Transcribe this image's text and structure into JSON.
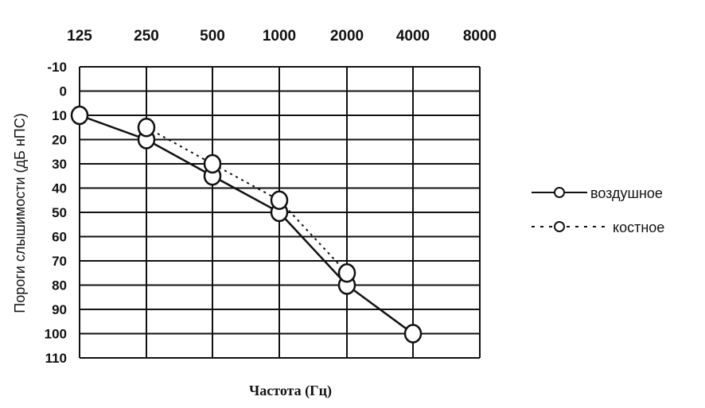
{
  "chart_data": {
    "type": "line",
    "title": "",
    "xlabel": "Частота (Гц)",
    "ylabel": "Пороги слышимости (дБ нПС)",
    "x_ticks": [
      "125",
      "250",
      "500",
      "1000",
      "2000",
      "4000",
      "8000"
    ],
    "y_ticks": [
      "-10",
      "0",
      "10",
      "20",
      "30",
      "40",
      "50",
      "60",
      "70",
      "80",
      "90",
      "100",
      "110"
    ],
    "ylim": [
      -10,
      110
    ],
    "y_inverted": true,
    "grid": true,
    "legend_position": "right",
    "series": [
      {
        "name": "воздушное",
        "style": "solid",
        "marker": "circle",
        "x": [
          "125",
          "250",
          "500",
          "1000",
          "2000",
          "4000"
        ],
        "values": [
          10,
          20,
          35,
          50,
          80,
          100
        ]
      },
      {
        "name": "костное",
        "style": "dotted",
        "marker": "circle",
        "x": [
          "250",
          "500",
          "1000",
          "2000"
        ],
        "values": [
          15,
          30,
          45,
          75
        ]
      }
    ]
  }
}
